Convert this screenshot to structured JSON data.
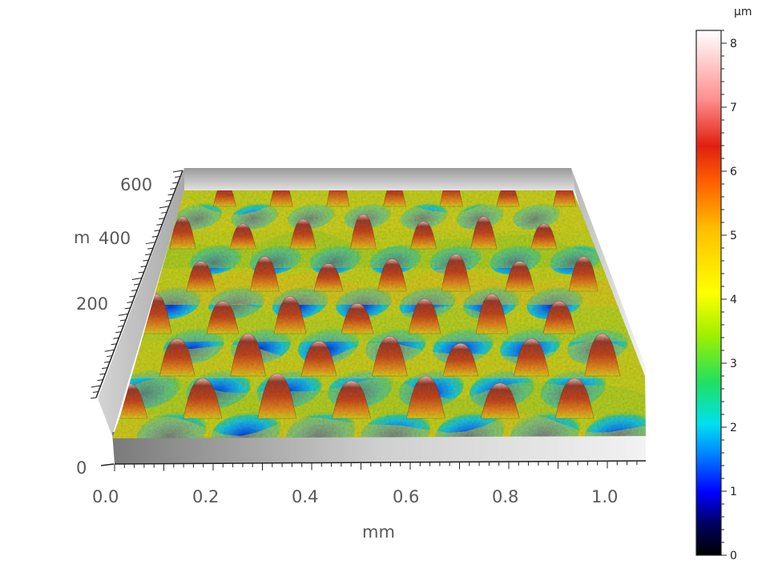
{
  "chart_data": {
    "type": "surface-3d",
    "title": "",
    "xlabel": "mm",
    "ylabel": "m",
    "x_ticks": [
      "0.0",
      "0.2",
      "0.4",
      "0.6",
      "0.8",
      "1.0"
    ],
    "y_ticks": [
      "0",
      "200",
      "400",
      "600"
    ],
    "colorbar": {
      "unit": "µm",
      "ticks": [
        "0",
        "1",
        "2",
        "3",
        "4",
        "5",
        "6",
        "7",
        "8"
      ],
      "range": [
        0,
        8.2
      ],
      "colors": [
        "#000000",
        "#0000ff",
        "#00a0ff",
        "#00e0e0",
        "#20d020",
        "#ffff00",
        "#ff9000",
        "#e02000",
        "#ffc0c0",
        "#ffffff"
      ]
    },
    "surface_range_um": [
      0.5,
      7.0
    ]
  }
}
